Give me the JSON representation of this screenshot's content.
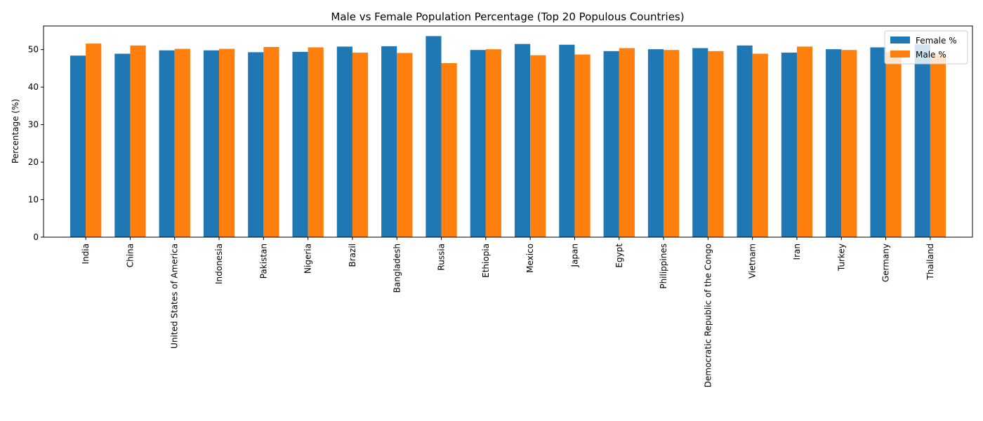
{
  "chart_data": {
    "type": "bar",
    "title": "Male vs Female Population Percentage (Top 20 Populous Countries)",
    "xlabel": "",
    "ylabel": "Percentage (%)",
    "ylim": [
      0,
      56.3
    ],
    "yticks": [
      0,
      10,
      20,
      30,
      40,
      50
    ],
    "grid": false,
    "legend_position": "top-right",
    "categories": [
      "India",
      "China",
      "United States of America",
      "Indonesia",
      "Pakistan",
      "Nigeria",
      "Brazil",
      "Bangladesh",
      "Russia",
      "Ethiopia",
      "Mexico",
      "Japan",
      "Egypt",
      "Philippines",
      "Democratic Republic of the Congo",
      "Vietnam",
      "Iran",
      "Turkey",
      "Germany",
      "Thailand"
    ],
    "series": [
      {
        "name": "Female %",
        "color": "#1f77b4",
        "values": [
          48.4,
          48.9,
          49.8,
          49.8,
          49.3,
          49.4,
          50.8,
          50.9,
          53.6,
          49.9,
          51.5,
          51.3,
          49.6,
          50.1,
          50.4,
          51.1,
          49.2,
          50.1,
          50.6,
          51.4
        ]
      },
      {
        "name": "Male %",
        "color": "#ff7f0e",
        "values": [
          51.6,
          51.1,
          50.2,
          50.2,
          50.7,
          50.6,
          49.2,
          49.1,
          46.4,
          50.1,
          48.5,
          48.7,
          50.4,
          49.9,
          49.6,
          48.9,
          50.8,
          49.9,
          49.4,
          48.6
        ]
      }
    ]
  }
}
